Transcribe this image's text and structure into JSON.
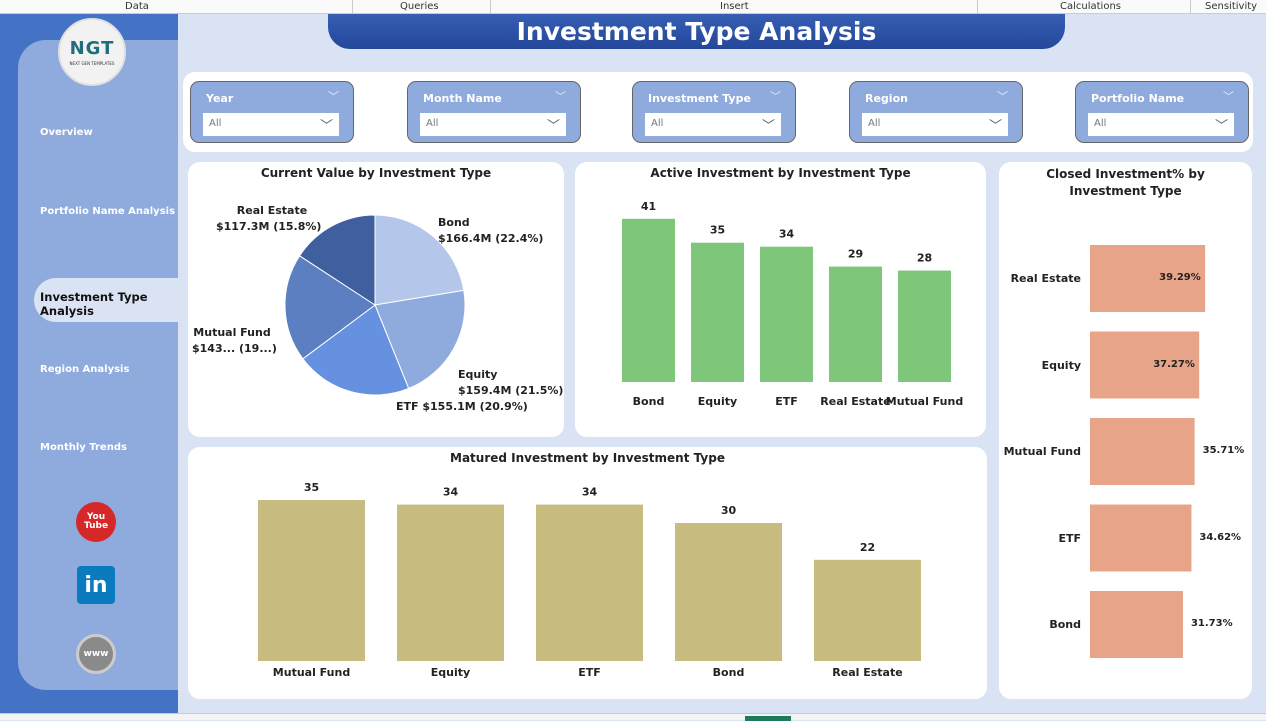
{
  "ribbon_tabs": [
    "Data",
    "Queries",
    "Insert",
    "Calculations",
    "Sensitivity"
  ],
  "sidebar": {
    "logo_text": "NGT",
    "logo_sub": "NEXT GEN TEMPLATES",
    "items": [
      {
        "label": "Overview"
      },
      {
        "label": "Portfolio Name Analysis"
      },
      {
        "label": "Investment Type Analysis",
        "active": true
      },
      {
        "label": "Region Analysis"
      },
      {
        "label": "Monthly Trends"
      }
    ],
    "social": {
      "youtube": "You Tube",
      "linkedin": "in",
      "web": "www"
    }
  },
  "title": "Investment Type  Analysis",
  "filters": [
    {
      "label": "Year",
      "value": "All"
    },
    {
      "label": "Month Name",
      "value": "All"
    },
    {
      "label": "Investment Type",
      "value": "All"
    },
    {
      "label": "Region",
      "value": "All"
    },
    {
      "label": "Portfolio Name",
      "value": "All"
    }
  ],
  "chart_data": [
    {
      "type": "pie",
      "title": "Current Value by Investment Type",
      "slices": [
        {
          "name": "Bond",
          "value": 166.4,
          "pct": 22.4,
          "label": "Bond",
          "sub": "$166.4M (22.4%)",
          "color": "#b4c7ea"
        },
        {
          "name": "Equity",
          "value": 159.4,
          "pct": 21.5,
          "label": "Equity",
          "sub": "$159.4M (21.5%)",
          "color": "#8faadc"
        },
        {
          "name": "ETF",
          "value": 155.1,
          "pct": 20.9,
          "label": "ETF $155.1M (20.9%)",
          "sub": "",
          "color": "#6690e0"
        },
        {
          "name": "Mutual Fund",
          "value": 143,
          "pct": 19.4,
          "label": "Mutual Fund",
          "sub": "$143... (19...)",
          "color": "#5b7fc0"
        },
        {
          "name": "Real Estate",
          "value": 117.3,
          "pct": 15.8,
          "label": "Real Estate",
          "sub": "$117.3M (15.8%)",
          "color": "#3f5f9e"
        }
      ]
    },
    {
      "type": "bar",
      "title": "Active Investment by Investment Type",
      "categories": [
        "Bond",
        "Equity",
        "ETF",
        "Real Estate",
        "Mutual Fund"
      ],
      "values": [
        41,
        35,
        34,
        29,
        28
      ],
      "color": "#7dc67a"
    },
    {
      "type": "bar",
      "title": "Matured Investment by Investment Type",
      "categories": [
        "Mutual Fund",
        "Equity",
        "ETF",
        "Bond",
        "Real Estate"
      ],
      "values": [
        35,
        34,
        34,
        30,
        22
      ],
      "color": "#c9bc80"
    },
    {
      "type": "bar-horizontal",
      "title": "Closed Investment% by Investment Type",
      "categories": [
        "Real Estate",
        "Equity",
        "Mutual Fund",
        "ETF",
        "Bond"
      ],
      "values": [
        39.29,
        37.27,
        35.71,
        34.62,
        31.73
      ],
      "labels": [
        "39.29%",
        "37.27%",
        "35.71%",
        "34.62%",
        "31.73%"
      ],
      "color": "#e8a488"
    }
  ]
}
